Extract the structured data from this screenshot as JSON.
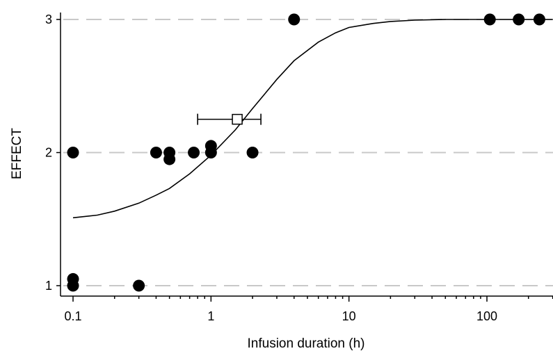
{
  "chart_data": {
    "type": "scatter",
    "title": "",
    "xlabel": "Infusion duration (h)",
    "ylabel": "EFFECT",
    "xscale": "log",
    "xlim": [
      0.08,
      350
    ],
    "ylim": [
      0.95,
      3.05
    ],
    "grid": "horizontal-dashed",
    "x_ticks": [
      {
        "value": 0.1,
        "label": "0.1"
      },
      {
        "value": 1,
        "label": "1"
      },
      {
        "value": 10,
        "label": "10"
      },
      {
        "value": 100,
        "label": "100"
      }
    ],
    "y_ticks": [
      {
        "value": 1,
        "label": "1"
      },
      {
        "value": 2,
        "label": "2"
      },
      {
        "value": 3,
        "label": "3"
      }
    ],
    "points": [
      {
        "x": 0.1,
        "y": 1.0
      },
      {
        "x": 0.1,
        "y": 1.05
      },
      {
        "x": 0.1,
        "y": 2.0
      },
      {
        "x": 0.3,
        "y": 1.0
      },
      {
        "x": 0.4,
        "y": 2.0
      },
      {
        "x": 0.5,
        "y": 2.0
      },
      {
        "x": 0.5,
        "y": 1.95
      },
      {
        "x": 0.75,
        "y": 2.0
      },
      {
        "x": 1.0,
        "y": 2.05
      },
      {
        "x": 1.0,
        "y": 2.0
      },
      {
        "x": 2.0,
        "y": 2.0
      },
      {
        "x": 4.0,
        "y": 3.0
      },
      {
        "x": 105,
        "y": 3.0
      },
      {
        "x": 170,
        "y": 3.0
      },
      {
        "x": 240,
        "y": 3.0
      }
    ],
    "fit_curve": [
      {
        "x": 0.1,
        "y": 1.51
      },
      {
        "x": 0.15,
        "y": 1.53
      },
      {
        "x": 0.2,
        "y": 1.56
      },
      {
        "x": 0.3,
        "y": 1.62
      },
      {
        "x": 0.4,
        "y": 1.68
      },
      {
        "x": 0.5,
        "y": 1.73
      },
      {
        "x": 0.7,
        "y": 1.84
      },
      {
        "x": 1.0,
        "y": 1.98
      },
      {
        "x": 1.5,
        "y": 2.17
      },
      {
        "x": 2.0,
        "y": 2.33
      },
      {
        "x": 3.0,
        "y": 2.55
      },
      {
        "x": 4.0,
        "y": 2.69
      },
      {
        "x": 6.0,
        "y": 2.83
      },
      {
        "x": 8.0,
        "y": 2.9
      },
      {
        "x": 10,
        "y": 2.94
      },
      {
        "x": 15,
        "y": 2.97
      },
      {
        "x": 20,
        "y": 2.985
      },
      {
        "x": 30,
        "y": 2.995
      },
      {
        "x": 50,
        "y": 3.0
      },
      {
        "x": 100,
        "y": 3.0
      },
      {
        "x": 300,
        "y": 3.0
      }
    ],
    "mean_estimate": {
      "x": 1.55,
      "y": 2.25,
      "xerr_low": 0.8,
      "xerr_high": 2.3
    }
  }
}
